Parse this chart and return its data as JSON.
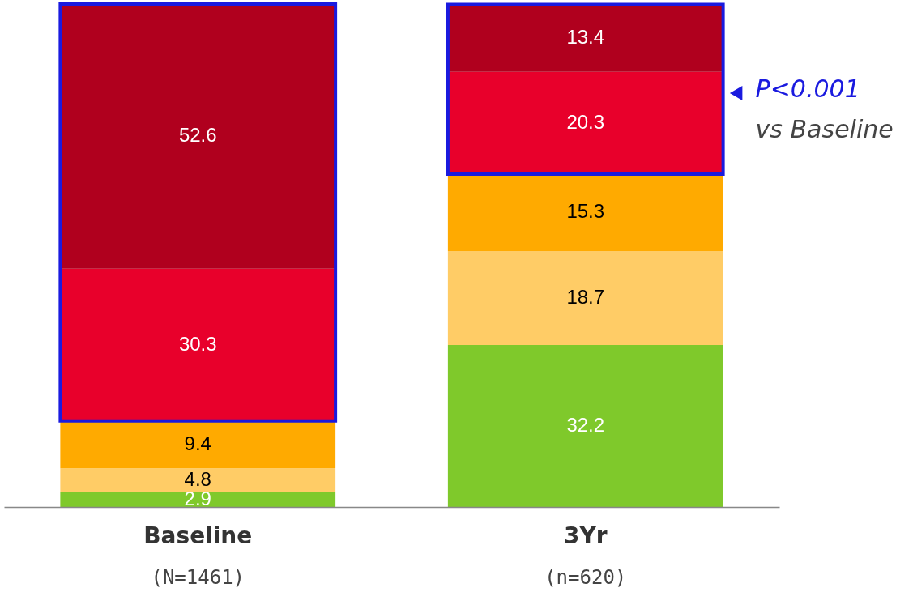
{
  "chart_data": {
    "type": "bar",
    "stacked": true,
    "data_labels": true,
    "categories": [
      "Baseline",
      "3Yr"
    ],
    "series": [
      {
        "color": "#7fc92b",
        "values": [
          2.9,
          32.2
        ]
      },
      {
        "color": "#ffcc66",
        "values": [
          4.8,
          18.7
        ]
      },
      {
        "color": "#ffaa00",
        "values": [
          9.4,
          15.3
        ]
      },
      {
        "color": "#e8002b",
        "values": [
          30.3,
          20.3
        ]
      },
      {
        "color": "#b0001e",
        "values": [
          52.6,
          13.4
        ]
      }
    ],
    "annotations": [
      "(N=1461)",
      "(n=620)",
      "P<0.001",
      "vs Baseline"
    ]
  }
}
